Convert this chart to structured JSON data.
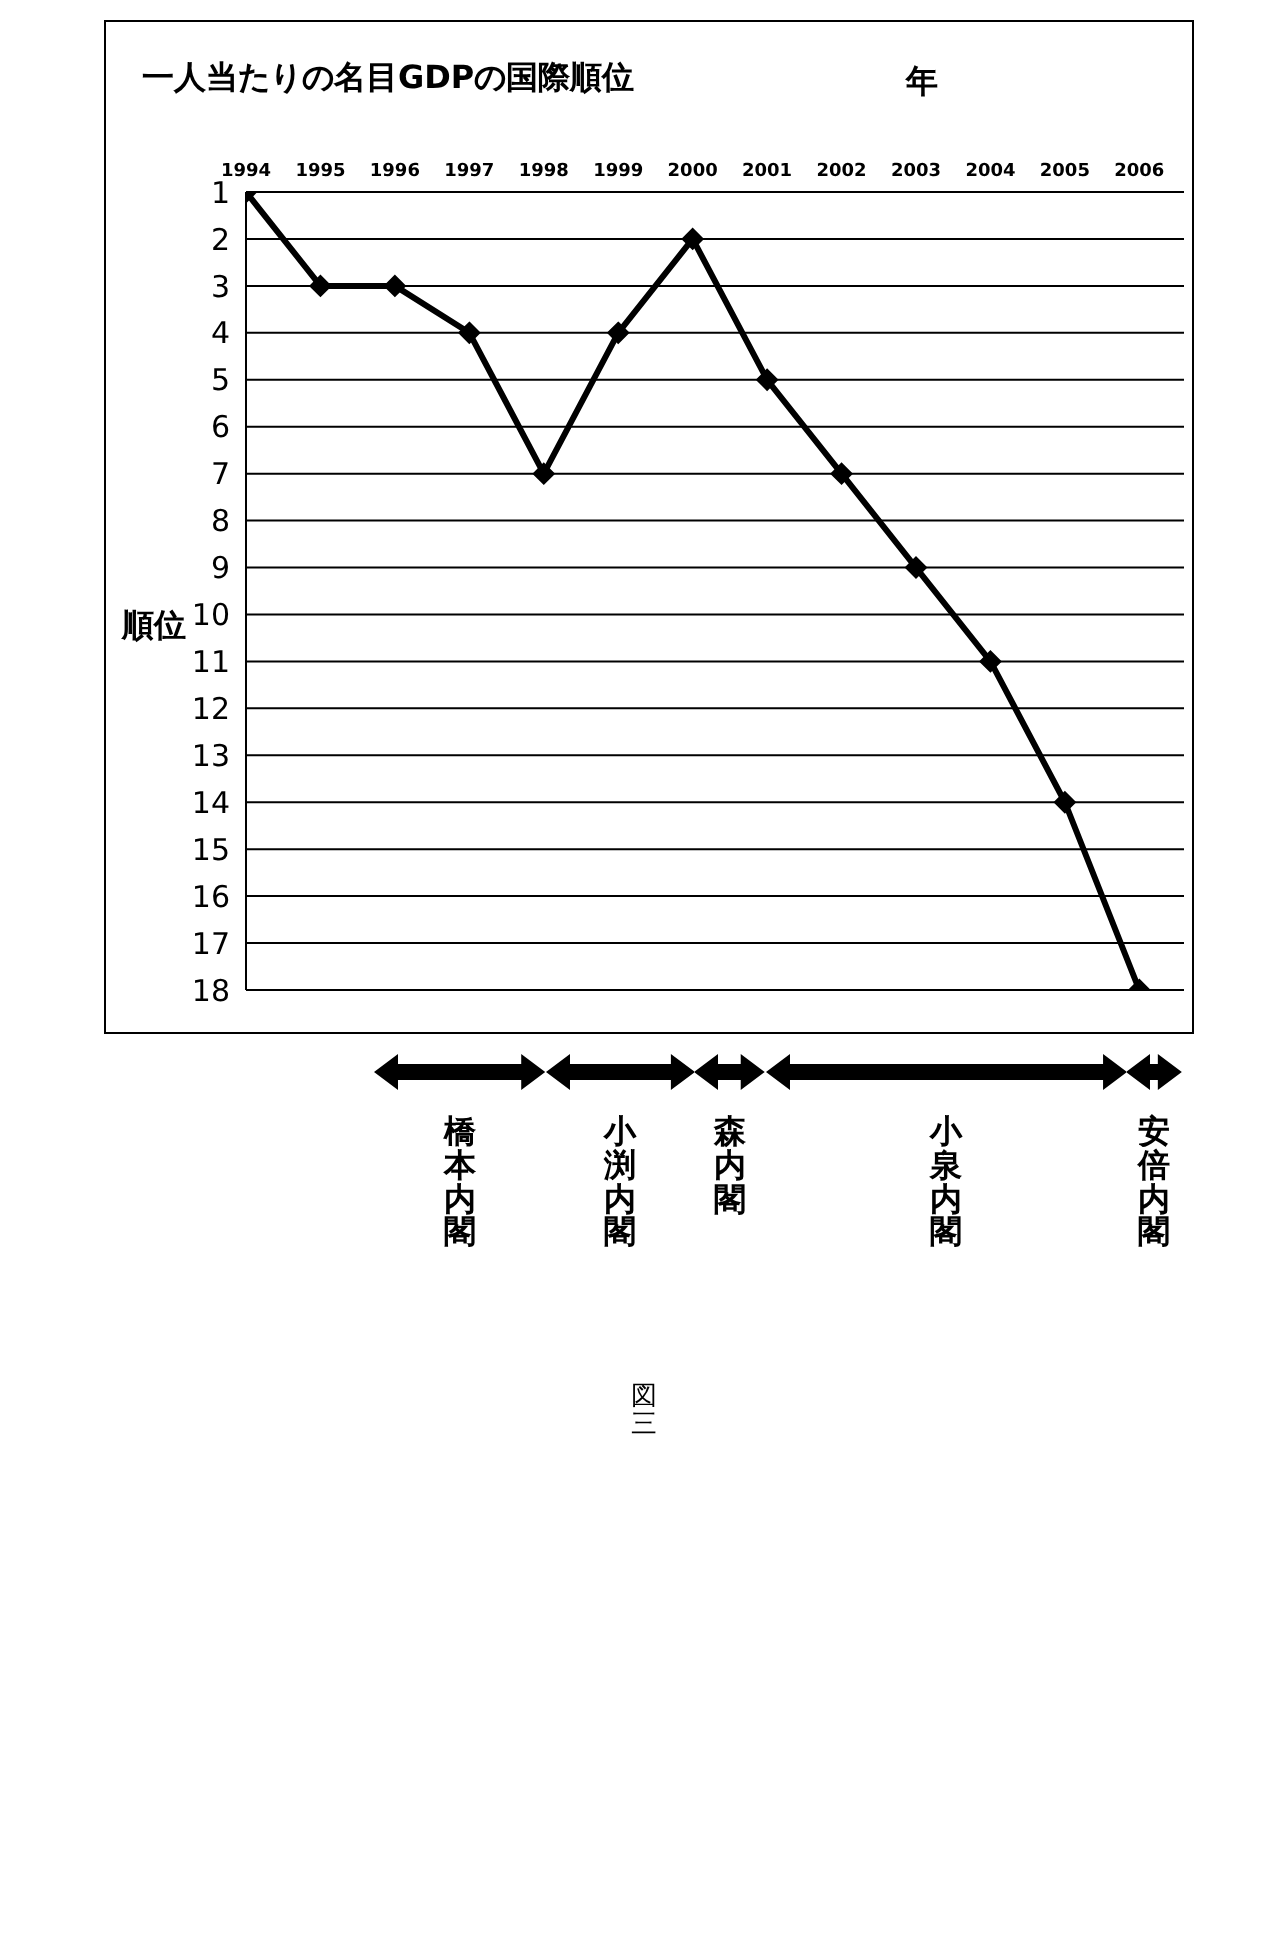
{
  "chart_data": {
    "type": "line",
    "title": "一人当たりの名目GDPの国際順位",
    "xlabel": "年",
    "ylabel": "順位",
    "x": [
      1994,
      1995,
      1996,
      1997,
      1998,
      1999,
      2000,
      2001,
      2002,
      2003,
      2004,
      2005,
      2006
    ],
    "series": [
      {
        "color": "#000000",
        "values": [
          1,
          3,
          3,
          4,
          7,
          4,
          2,
          5,
          7,
          9,
          11,
          14,
          18
        ]
      }
    ],
    "xlim": [
      1994,
      2006.6
    ],
    "xticks": [
      1994,
      1995,
      1996,
      1997,
      1998,
      1999,
      2000,
      2001,
      2002,
      2003,
      2004,
      2005,
      2006
    ],
    "ylim": [
      18,
      1
    ],
    "yticks": [
      1,
      2,
      3,
      4,
      5,
      6,
      7,
      8,
      9,
      10,
      11,
      12,
      13,
      14,
      15,
      16,
      17,
      18
    ],
    "grid": "y",
    "marker": "diamond",
    "line_style": "solid",
    "legend": false,
    "annotations": [
      "橋本内閣",
      "小渕内閣",
      "森内閣",
      "小泉内閣",
      "安倍内閣",
      "図三"
    ]
  }
}
